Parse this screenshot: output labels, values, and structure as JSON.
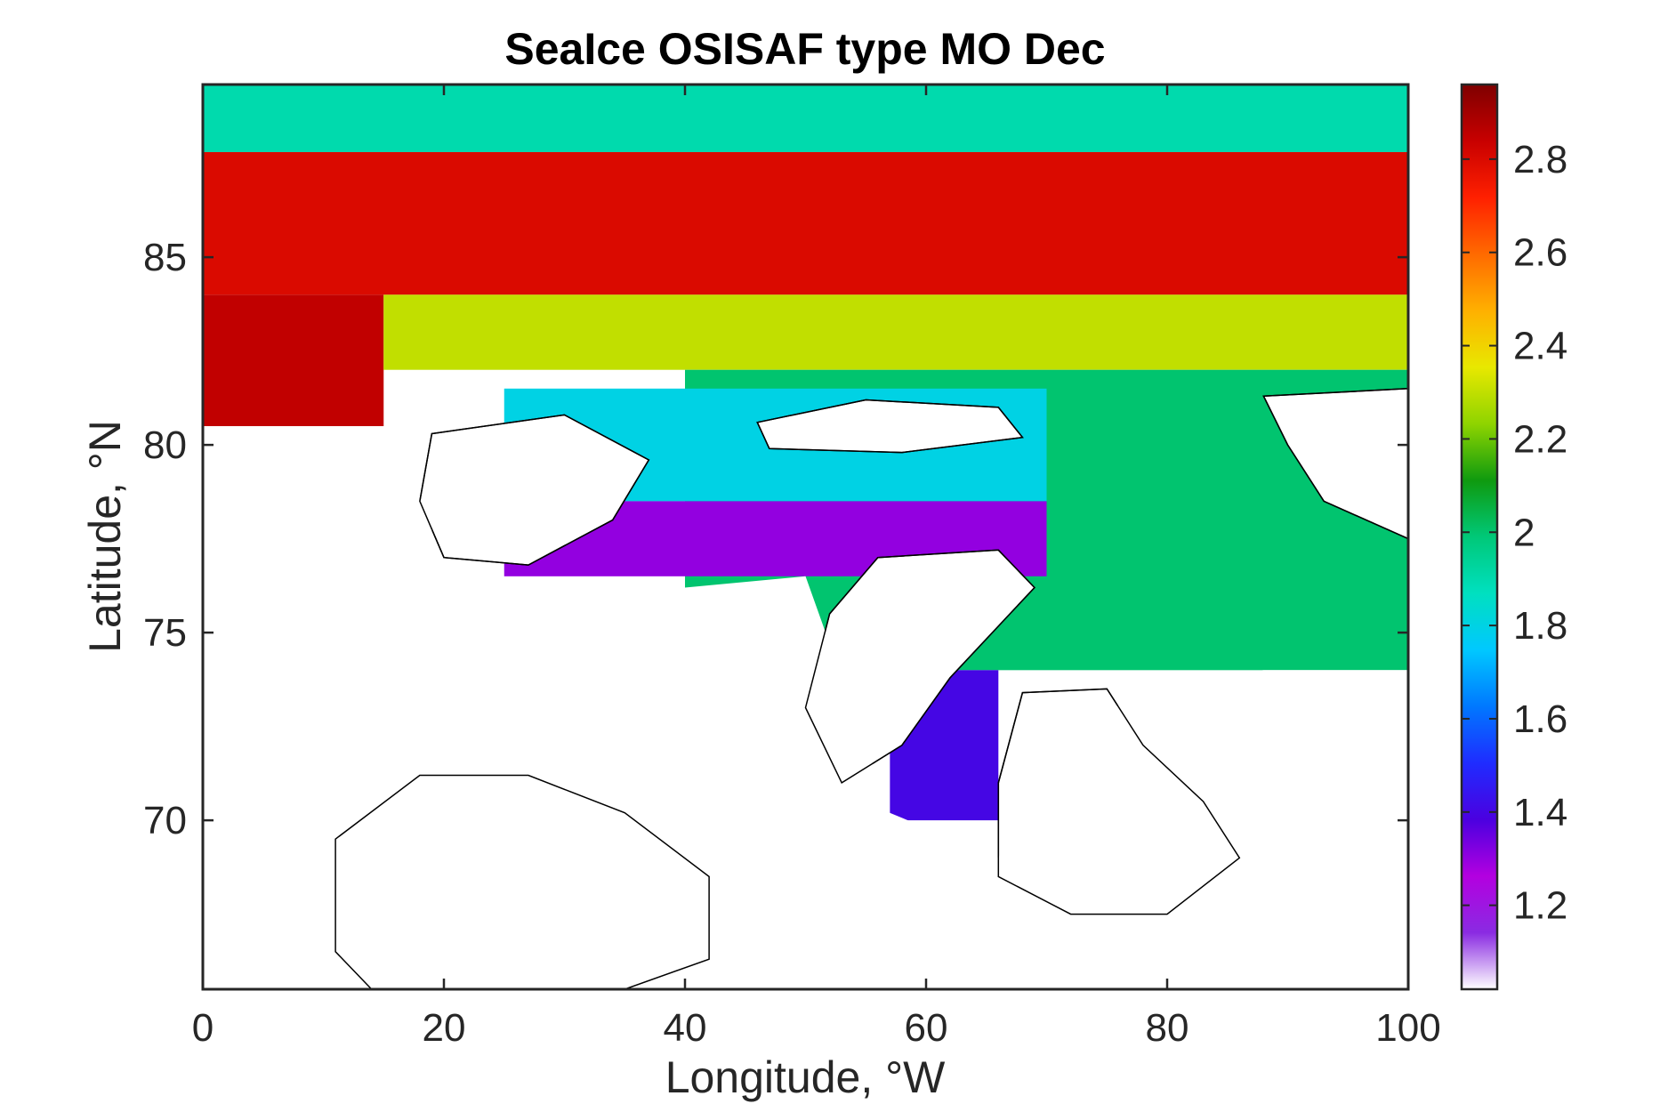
{
  "chart_data": {
    "type": "heatmap",
    "title": "SeaIce OSISAF type MO Dec",
    "xlabel": "Longitude, °W",
    "ylabel": "Latitude, °N",
    "xlim": [
      0,
      100
    ],
    "ylim": [
      65.5,
      89.6
    ],
    "x_ticks": [
      0,
      20,
      40,
      60,
      80,
      100
    ],
    "y_ticks": [
      70,
      75,
      80,
      85
    ],
    "colorbar": {
      "lim": [
        1.02,
        2.96
      ],
      "ticks": [
        1.2,
        1.4,
        1.6,
        1.8,
        2,
        2.2,
        2.4,
        2.6,
        2.8
      ],
      "colormap": [
        "#ffffff",
        "#8a2be2",
        "#b300e0",
        "#4b00e0",
        "#1f2cff",
        "#0078ff",
        "#00c8ff",
        "#00e0c0",
        "#00c878",
        "#0f9a0f",
        "#8fd400",
        "#e8e800",
        "#ffb000",
        "#ff6a00",
        "#ff2000",
        "#c80000",
        "#7f0000"
      ]
    },
    "regions": [
      {
        "lon": [
          0,
          100
        ],
        "lat": [
          87.8,
          89.6
        ],
        "value": 1.9
      },
      {
        "lon": [
          0,
          100
        ],
        "lat": [
          84.0,
          87.8
        ],
        "value": 2.8
      },
      {
        "lon": [
          0,
          15
        ],
        "lat": [
          80.5,
          84.0
        ],
        "value": 2.85
      },
      {
        "lon": [
          15,
          100
        ],
        "lat": [
          82.0,
          84.0
        ],
        "value": 2.3
      },
      {
        "lon": [
          40,
          100
        ],
        "lat": [
          74.0,
          82.0
        ],
        "value": 2.0
      },
      {
        "lon": [
          25,
          70
        ],
        "lat": [
          78.5,
          81.5
        ],
        "value": 1.8
      },
      {
        "lon": [
          25,
          70
        ],
        "lat": [
          76.5,
          78.5
        ],
        "value": 1.3
      },
      {
        "lon": [
          57,
          66
        ],
        "lat": [
          70.0,
          74.0
        ],
        "value": 1.4
      }
    ]
  }
}
